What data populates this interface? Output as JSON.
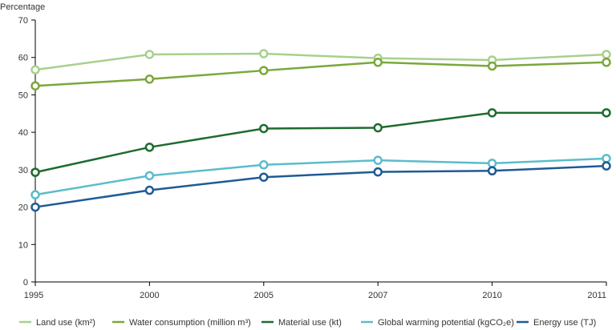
{
  "chart_data": {
    "type": "line",
    "title": "",
    "ylabel": "Percentage",
    "xlabel": "",
    "x": [
      "1995",
      "2000",
      "2005",
      "2007",
      "2010",
      "2011"
    ],
    "ylim": [
      0,
      70
    ],
    "yticks": [
      "0",
      "10",
      "20",
      "30",
      "40",
      "50",
      "60",
      "70"
    ],
    "grid": false,
    "legend_position": "bottom",
    "series": [
      {
        "name": "Land use (km²)",
        "color": "#a8d08d",
        "values": [
          56.7,
          60.8,
          61.0,
          59.8,
          59.3,
          60.8
        ]
      },
      {
        "name": "Water consumption (million m³)",
        "color": "#7aa83a",
        "values": [
          52.4,
          54.2,
          56.5,
          58.7,
          57.7,
          58.7
        ]
      },
      {
        "name": "Material use (kt)",
        "color": "#1e6b2e",
        "values": [
          29.3,
          36.0,
          41.0,
          41.2,
          45.2,
          45.2
        ]
      },
      {
        "name": "Global warming potential (kgCO₂e)",
        "color": "#5bbccc",
        "values": [
          23.3,
          28.4,
          31.3,
          32.5,
          31.7,
          33.0
        ]
      },
      {
        "name": "Energy use (TJ)",
        "color": "#1f5a96",
        "values": [
          20.0,
          24.5,
          28.0,
          29.4,
          29.7,
          31.0
        ]
      }
    ]
  }
}
